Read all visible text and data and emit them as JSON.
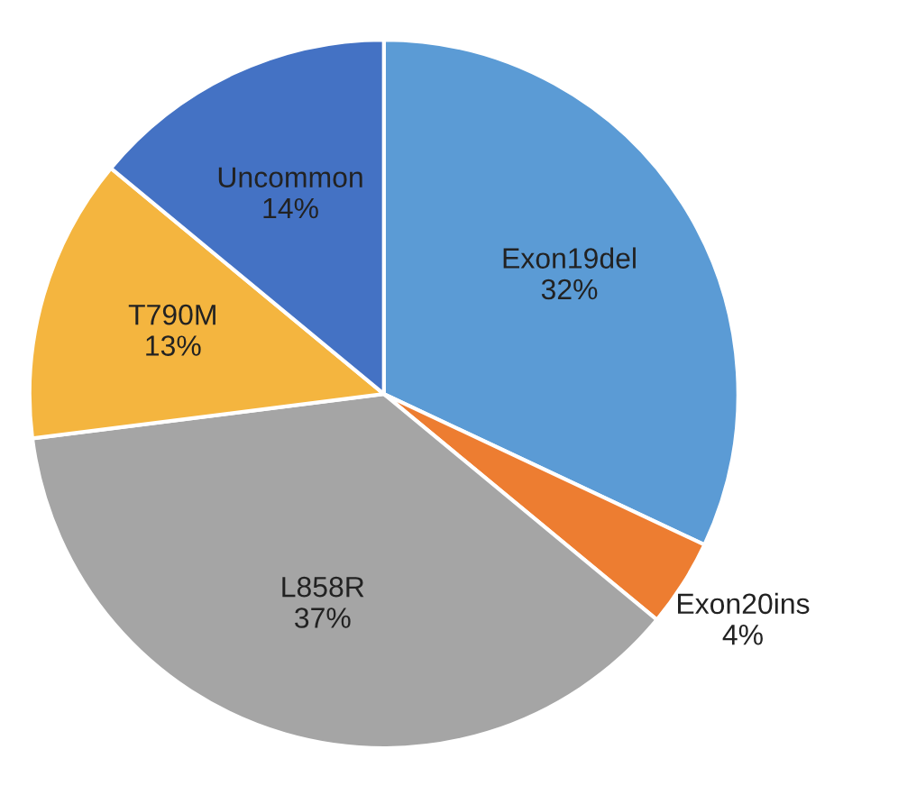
{
  "chart_data": {
    "type": "pie",
    "categories": [
      "Exon19del",
      "Exon20ins",
      "L858R",
      "T790M",
      "Uncommon"
    ],
    "values": [
      32,
      4,
      37,
      13,
      14
    ],
    "value_labels": [
      "32%",
      "4%",
      "37%",
      "13%",
      "14%"
    ],
    "colors": [
      "#5b9bd5",
      "#ed7d31",
      "#a5a5a5",
      "#f4b53f",
      "#4472c4"
    ],
    "legend": false
  }
}
